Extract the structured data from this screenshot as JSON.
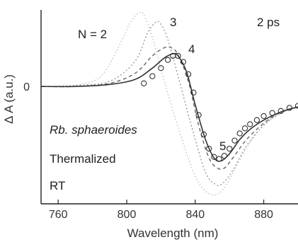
{
  "chart_data": {
    "type": "line",
    "title": "",
    "xlabel": "Wavelength (nm)",
    "ylabel": "Δ A (a.u.)",
    "xlim": [
      750,
      900
    ],
    "ylim": [
      -1.15,
      0.75
    ],
    "x_ticks": [
      760,
      800,
      840,
      880
    ],
    "x_tick_labels": [
      "760",
      "800",
      "840",
      "880"
    ],
    "y_ticks": [
      0
    ],
    "y_tick_labels": [
      "0"
    ],
    "grid": false,
    "annotations": {
      "n_label": "N = 2",
      "n3": "3",
      "n4": "4",
      "n5": "5",
      "time": "2 ps",
      "species": "Rb. sphaeroides",
      "condition": "Thermalized",
      "temperature": "RT"
    },
    "series": [
      {
        "style": "dotted-light",
        "color": "#bbbbbb",
        "x": [
          750,
          770,
          785,
          795,
          802,
          807,
          810,
          815,
          822,
          830,
          840,
          848,
          855,
          862,
          870,
          880,
          890,
          900
        ],
        "y": [
          0.0,
          0.01,
          0.1,
          0.38,
          0.62,
          0.72,
          0.7,
          0.48,
          0.05,
          -0.4,
          -0.88,
          -1.05,
          -1.03,
          -0.85,
          -0.6,
          -0.38,
          -0.26,
          -0.2
        ]
      },
      {
        "style": "dotted",
        "color": "#999999",
        "x": [
          750,
          770,
          790,
          805,
          812,
          817,
          820,
          824,
          830,
          838,
          846,
          852,
          856,
          862,
          870,
          880,
          890,
          900
        ],
        "y": [
          0.0,
          0.01,
          0.05,
          0.25,
          0.52,
          0.63,
          0.61,
          0.46,
          0.1,
          -0.4,
          -0.84,
          -0.96,
          -0.95,
          -0.82,
          -0.58,
          -0.38,
          -0.26,
          -0.2
        ]
      },
      {
        "style": "dashed",
        "color": "#666666",
        "x": [
          750,
          770,
          790,
          805,
          815,
          822,
          826,
          830,
          836,
          842,
          848,
          853,
          857,
          862,
          870,
          880,
          890,
          900
        ],
        "y": [
          0.0,
          0.0,
          0.03,
          0.13,
          0.3,
          0.38,
          0.38,
          0.31,
          0.05,
          -0.38,
          -0.7,
          -0.8,
          -0.8,
          -0.7,
          -0.52,
          -0.36,
          -0.25,
          -0.2
        ]
      },
      {
        "style": "solid",
        "color": "#333333",
        "x": [
          750,
          770,
          790,
          805,
          815,
          822,
          827,
          830,
          835,
          840,
          846,
          851,
          855,
          860,
          866,
          872,
          880,
          890,
          900
        ],
        "y": [
          0.0,
          0.0,
          0.02,
          0.07,
          0.18,
          0.28,
          0.32,
          0.3,
          0.14,
          -0.18,
          -0.52,
          -0.7,
          -0.73,
          -0.66,
          -0.52,
          -0.42,
          -0.33,
          -0.25,
          -0.2
        ]
      },
      {
        "style": "markers",
        "color": "#333333",
        "x": [
          810,
          815,
          820,
          824,
          827,
          830,
          833,
          836,
          839,
          842,
          845,
          848,
          851,
          854,
          857,
          860,
          863,
          866,
          869,
          872,
          876,
          880,
          885,
          890,
          895,
          900
        ],
        "y": [
          0.03,
          0.1,
          0.18,
          0.26,
          0.3,
          0.3,
          0.24,
          0.12,
          -0.06,
          -0.28,
          -0.47,
          -0.61,
          -0.69,
          -0.71,
          -0.68,
          -0.61,
          -0.53,
          -0.46,
          -0.41,
          -0.37,
          -0.33,
          -0.29,
          -0.26,
          -0.24,
          -0.21,
          -0.19
        ]
      }
    ]
  }
}
